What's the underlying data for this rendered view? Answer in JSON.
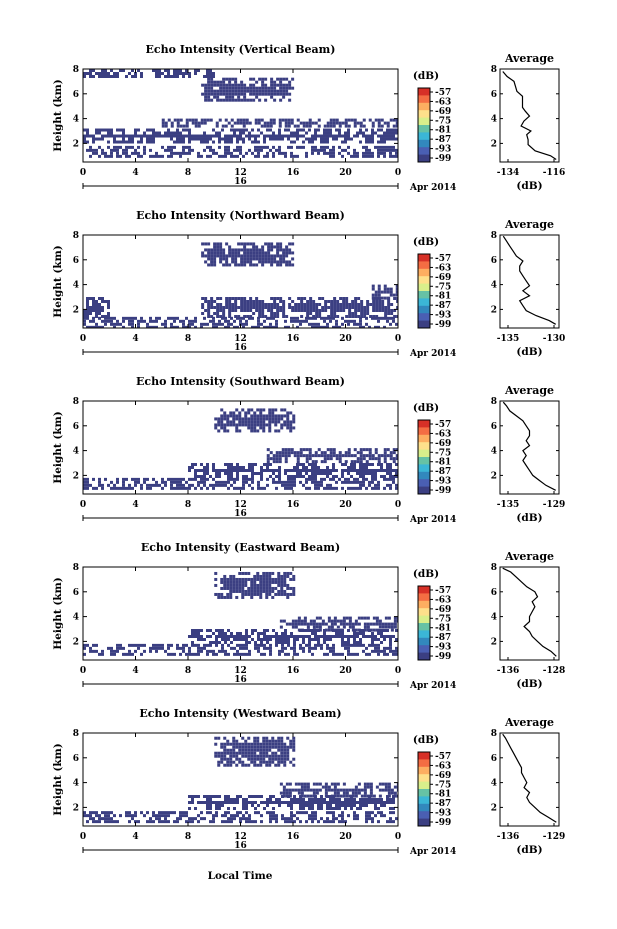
{
  "figure": {
    "bottom_xlabel": "Local Time",
    "date_label": "Apr 2014",
    "day_label": "16",
    "colorbar_unit": "(dB)",
    "colorbar_ticks": [
      "-57",
      "-63",
      "-69",
      "-75",
      "-81",
      "-87",
      "-93",
      "-99"
    ],
    "colors": {
      "echo": "#3b3f82",
      "colorbar": [
        "#d73027",
        "#f46d43",
        "#fdae61",
        "#fee08b",
        "#d9ef8b",
        "#66c2a5",
        "#3bb6d6",
        "#3288bd",
        "#4a5fb3",
        "#3b3f82"
      ]
    }
  },
  "chart_data": [
    {
      "type": "heatmap",
      "title": "Echo Intensity (Vertical Beam)",
      "ylabel": "Height (km)",
      "xticks": [
        "0",
        "4",
        "8",
        "12",
        "16",
        "20",
        "0"
      ],
      "yticks": [
        "2",
        "4",
        "6",
        "8"
      ],
      "xlim": [
        0,
        24
      ],
      "ylim": [
        0.5,
        8
      ],
      "colorbar": {
        "unit": "(dB)",
        "ticks": [
          "-57",
          "-63",
          "-69",
          "-75",
          "-81",
          "-87",
          "-93",
          "-99"
        ]
      },
      "echo_regions": [
        {
          "t": [
            0,
            24
          ],
          "h": [
            0.9,
            1.8
          ]
        },
        {
          "t": [
            0,
            24
          ],
          "h": [
            2.2,
            3.2
          ]
        },
        {
          "t": [
            6,
            24
          ],
          "h": [
            3.3,
            4.0
          ]
        },
        {
          "t": [
            9,
            16
          ],
          "h": [
            5.4,
            7.3
          ]
        },
        {
          "t": [
            0,
            10
          ],
          "h": [
            7.3,
            8.0
          ]
        }
      ],
      "average": {
        "title": "Average",
        "xlabel": "(dB)",
        "xticks": [
          "-134",
          "-116"
        ],
        "yticks": [
          "2",
          "4",
          "6",
          "8"
        ],
        "xlim": [
          -135.5,
          -114.5
        ],
        "ylim": [
          0.5,
          8
        ],
        "height": [
          0.7,
          1.0,
          1.4,
          1.9,
          2.3,
          2.7,
          3.0,
          3.4,
          3.8,
          4.2,
          4.6,
          4.9,
          5.3,
          5.8,
          6.2,
          6.6,
          7.0,
          7.4,
          7.8
        ],
        "values": [
          -115.5,
          -117.5,
          -123.0,
          -125.5,
          -125.5,
          -126.0,
          -124.5,
          -128.0,
          -127.0,
          -125.0,
          -126.5,
          -127.5,
          -127.5,
          -127.5,
          -129.5,
          -130.0,
          -130.5,
          -133.0,
          -134.5
        ]
      }
    },
    {
      "type": "heatmap",
      "title": "Echo Intensity (Northward Beam)",
      "ylabel": "Height (km)",
      "xticks": [
        "0",
        "4",
        "8",
        "12",
        "16",
        "20",
        "0"
      ],
      "yticks": [
        "2",
        "4",
        "6",
        "8"
      ],
      "xlim": [
        0,
        24
      ],
      "ylim": [
        0.5,
        8
      ],
      "colorbar": {
        "unit": "(dB)",
        "ticks": [
          "-57",
          "-63",
          "-69",
          "-75",
          "-81",
          "-87",
          "-93",
          "-99"
        ]
      },
      "echo_regions": [
        {
          "t": [
            0,
            24
          ],
          "h": [
            0.6,
            1.4
          ]
        },
        {
          "t": [
            0,
            2
          ],
          "h": [
            1.5,
            3.0
          ]
        },
        {
          "t": [
            9,
            24
          ],
          "h": [
            1.5,
            3.0
          ]
        },
        {
          "t": [
            9,
            16
          ],
          "h": [
            5.5,
            7.4
          ]
        },
        {
          "t": [
            22,
            24
          ],
          "h": [
            3.0,
            4.0
          ]
        }
      ],
      "average": {
        "title": "Average",
        "xlabel": "(dB)",
        "xticks": [
          "-135",
          "-130"
        ],
        "yticks": [
          "2",
          "4",
          "6",
          "8"
        ],
        "xlim": [
          -136.5,
          -127.5
        ],
        "ylim": [
          0.5,
          8
        ],
        "height": [
          0.8,
          1.1,
          1.5,
          1.9,
          2.3,
          2.7,
          3.1,
          3.5,
          3.9,
          4.3,
          4.7,
          5.1,
          5.5,
          5.9,
          6.3,
          6.7,
          7.1,
          7.5,
          7.9
        ],
        "values": [
          -128.0,
          -129.0,
          -131.0,
          -132.5,
          -133.0,
          -133.5,
          -132.0,
          -133.0,
          -132.0,
          -132.5,
          -133.0,
          -133.5,
          -133.5,
          -133.0,
          -134.0,
          -134.5,
          -135.0,
          -135.5,
          -136.0
        ]
      }
    },
    {
      "type": "heatmap",
      "title": "Echo Intensity (Southward Beam)",
      "ylabel": "Height (km)",
      "xticks": [
        "0",
        "4",
        "8",
        "12",
        "16",
        "20",
        "0"
      ],
      "yticks": [
        "2",
        "4",
        "6",
        "8"
      ],
      "xlim": [
        0,
        24
      ],
      "ylim": [
        0.5,
        8
      ],
      "colorbar": {
        "unit": "(dB)",
        "ticks": [
          "-57",
          "-63",
          "-69",
          "-75",
          "-81",
          "-87",
          "-93",
          "-99"
        ]
      },
      "echo_regions": [
        {
          "t": [
            0,
            24
          ],
          "h": [
            1.0,
            1.8
          ]
        },
        {
          "t": [
            8,
            24
          ],
          "h": [
            1.9,
            3.0
          ]
        },
        {
          "t": [
            10,
            16
          ],
          "h": [
            5.5,
            7.4
          ]
        },
        {
          "t": [
            14,
            24
          ],
          "h": [
            3.2,
            4.2
          ]
        }
      ],
      "average": {
        "title": "Average",
        "xlabel": "(dB)",
        "xticks": [
          "-135",
          "-129"
        ],
        "yticks": [
          "2",
          "4",
          "6",
          "8"
        ],
        "xlim": [
          -136.5,
          -127.5
        ],
        "ylim": [
          0.5,
          8
        ],
        "height": [
          0.8,
          1.2,
          1.6,
          2.0,
          2.4,
          2.8,
          3.2,
          3.6,
          4.0,
          4.4,
          4.8,
          5.2,
          5.6,
          6.0,
          6.4,
          6.8,
          7.2,
          7.6,
          7.9
        ],
        "values": [
          -128.0,
          -129.5,
          -130.5,
          -131.5,
          -132.0,
          -132.5,
          -133.0,
          -132.5,
          -133.0,
          -132.0,
          -132.5,
          -132.0,
          -132.0,
          -132.5,
          -133.0,
          -134.0,
          -135.0,
          -135.5,
          -136.0
        ]
      }
    },
    {
      "type": "heatmap",
      "title": "Echo Intensity (Eastward Beam)",
      "ylabel": "Height (km)",
      "xticks": [
        "0",
        "4",
        "8",
        "12",
        "16",
        "20",
        "0"
      ],
      "yticks": [
        "2",
        "4",
        "6",
        "8"
      ],
      "xlim": [
        0,
        24
      ],
      "ylim": [
        0.5,
        8
      ],
      "colorbar": {
        "unit": "(dB)",
        "ticks": [
          "-57",
          "-63",
          "-69",
          "-75",
          "-81",
          "-87",
          "-93",
          "-99"
        ]
      },
      "echo_regions": [
        {
          "t": [
            0,
            24
          ],
          "h": [
            1.0,
            1.8
          ]
        },
        {
          "t": [
            8,
            24
          ],
          "h": [
            1.9,
            3.0
          ]
        },
        {
          "t": [
            10,
            16
          ],
          "h": [
            5.5,
            7.6
          ]
        },
        {
          "t": [
            15,
            24
          ],
          "h": [
            3.0,
            4.0
          ]
        }
      ],
      "average": {
        "title": "Average",
        "xlabel": "(dB)",
        "xticks": [
          "-136",
          "-128"
        ],
        "yticks": [
          "2",
          "4",
          "6",
          "8"
        ],
        "xlim": [
          -137.5,
          -126.5
        ],
        "ylim": [
          0.5,
          8
        ],
        "height": [
          0.8,
          1.2,
          1.6,
          2.0,
          2.4,
          2.8,
          3.2,
          3.6,
          4.0,
          4.4,
          4.8,
          5.2,
          5.6,
          6.0,
          6.4,
          6.8,
          7.2,
          7.6,
          7.9
        ],
        "values": [
          -127.0,
          -128.0,
          -129.5,
          -130.5,
          -131.5,
          -132.0,
          -133.0,
          -132.0,
          -132.0,
          -131.5,
          -131.0,
          -131.5,
          -130.5,
          -131.0,
          -132.5,
          -133.5,
          -134.5,
          -135.5,
          -137.0
        ]
      }
    },
    {
      "type": "heatmap",
      "title": "Echo Intensity (Westward Beam)",
      "ylabel": "Height (km)",
      "xticks": [
        "0",
        "4",
        "8",
        "12",
        "16",
        "20",
        "0"
      ],
      "yticks": [
        "2",
        "4",
        "6",
        "8"
      ],
      "xlim": [
        0,
        24
      ],
      "ylim": [
        0.5,
        8
      ],
      "colorbar": {
        "unit": "(dB)",
        "ticks": [
          "-57",
          "-63",
          "-69",
          "-75",
          "-81",
          "-87",
          "-93",
          "-99"
        ]
      },
      "echo_regions": [
        {
          "t": [
            0,
            24
          ],
          "h": [
            0.9,
            1.7
          ]
        },
        {
          "t": [
            8,
            24
          ],
          "h": [
            1.9,
            3.0
          ]
        },
        {
          "t": [
            10,
            16
          ],
          "h": [
            5.5,
            7.7
          ]
        },
        {
          "t": [
            15,
            24
          ],
          "h": [
            3.0,
            4.0
          ]
        }
      ],
      "average": {
        "title": "Average",
        "xlabel": "(dB)",
        "xticks": [
          "-136",
          "-129"
        ],
        "yticks": [
          "2",
          "4",
          "6",
          "8"
        ],
        "xlim": [
          -137.5,
          -126.5
        ],
        "ylim": [
          0.5,
          8
        ],
        "height": [
          0.8,
          1.2,
          1.6,
          2.0,
          2.4,
          2.8,
          3.2,
          3.6,
          4.0,
          4.4,
          4.8,
          5.2,
          5.6,
          6.0,
          6.4,
          6.8,
          7.2,
          7.6,
          7.9
        ],
        "values": [
          -127.0,
          -128.5,
          -130.0,
          -131.0,
          -132.0,
          -132.5,
          -132.0,
          -133.0,
          -132.5,
          -133.0,
          -133.5,
          -133.5,
          -134.0,
          -134.5,
          -135.0,
          -135.5,
          -136.0,
          -136.5,
          -137.0
        ]
      }
    }
  ]
}
